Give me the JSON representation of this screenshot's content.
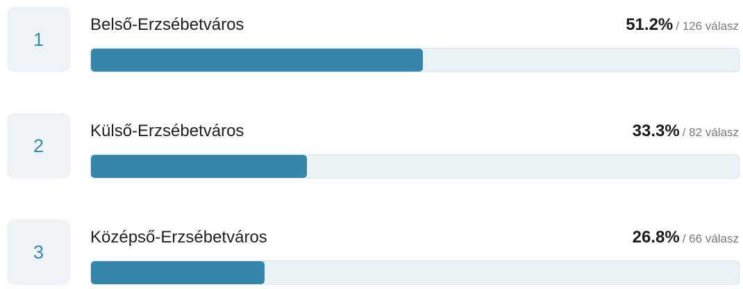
{
  "results": [
    {
      "rank": "1",
      "label": "Belső-Erzsébetváros",
      "percent": "51.2%",
      "count_text": "/ 126 válasz",
      "fill_fraction": 0.512
    },
    {
      "rank": "2",
      "label": "Külső-Erzsébetváros",
      "percent": "33.3%",
      "count_text": "/ 82 válasz",
      "fill_fraction": 0.333
    },
    {
      "rank": "3",
      "label": "Középső-Erzsébetváros",
      "percent": "26.8%",
      "count_text": "/ 66 válasz",
      "fill_fraction": 0.268
    }
  ],
  "colors": {
    "accent": "#3686ab",
    "track": "#eaf2f6",
    "rank_box": "#edf3f6",
    "rank_text": "#3a88ad"
  }
}
